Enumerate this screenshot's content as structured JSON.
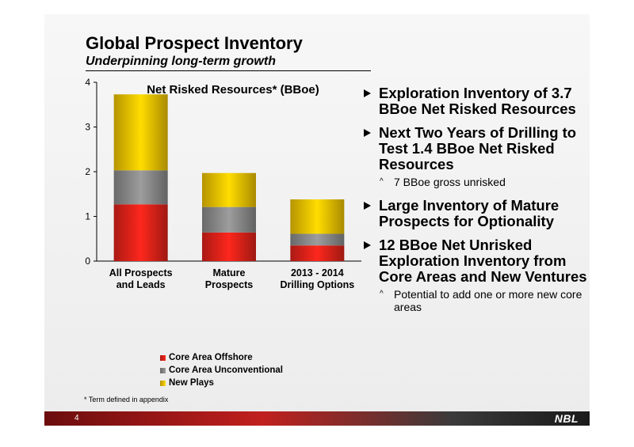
{
  "title": "Global Prospect Inventory",
  "subtitle": "Underpinning long-term growth",
  "chart_data": {
    "type": "bar",
    "stacked": true,
    "title": "Net Risked Resources* (BBoe)",
    "categories": [
      "All Prospects and Leads",
      "Mature Prospects",
      "2013 - 2014 Drilling Options"
    ],
    "category_lines": [
      [
        "All Prospects",
        "and Leads"
      ],
      [
        "Mature",
        "Prospects"
      ],
      [
        "2013 - 2014",
        "Drilling Options"
      ]
    ],
    "series": [
      {
        "name": "Core Area Offshore",
        "values": [
          1.27,
          0.64,
          0.35
        ],
        "color": "#e2231a"
      },
      {
        "name": "Core Area Unconventional",
        "values": [
          0.76,
          0.57,
          0.26
        ],
        "color": "#8c8c8c"
      },
      {
        "name": "New Plays",
        "values": [
          1.7,
          0.76,
          0.77
        ],
        "color": "#f2c500"
      }
    ],
    "ylim": [
      0,
      4
    ],
    "yticks": [
      0,
      1,
      2,
      3,
      4
    ],
    "legend_position": "bottom"
  },
  "bullets": [
    {
      "text": "Exploration Inventory of 3.7 BBoe Net Risked Resources",
      "sub": []
    },
    {
      "text": "Next Two Years of Drilling to Test 1.4 BBoe Net Risked Resources",
      "sub": [
        "7 BBoe gross unrisked"
      ]
    },
    {
      "text": "Large Inventory of Mature Prospects for Optionality",
      "sub": []
    },
    {
      "text": "12 BBoe Net Unrisked Exploration Inventory from Core Areas and New Ventures",
      "sub": [
        "Potential to add one or more new core areas"
      ]
    }
  ],
  "sub_bullet_mark": "^",
  "footnote": "* Term defined in appendix",
  "page_number": "4",
  "logo": "NBL"
}
